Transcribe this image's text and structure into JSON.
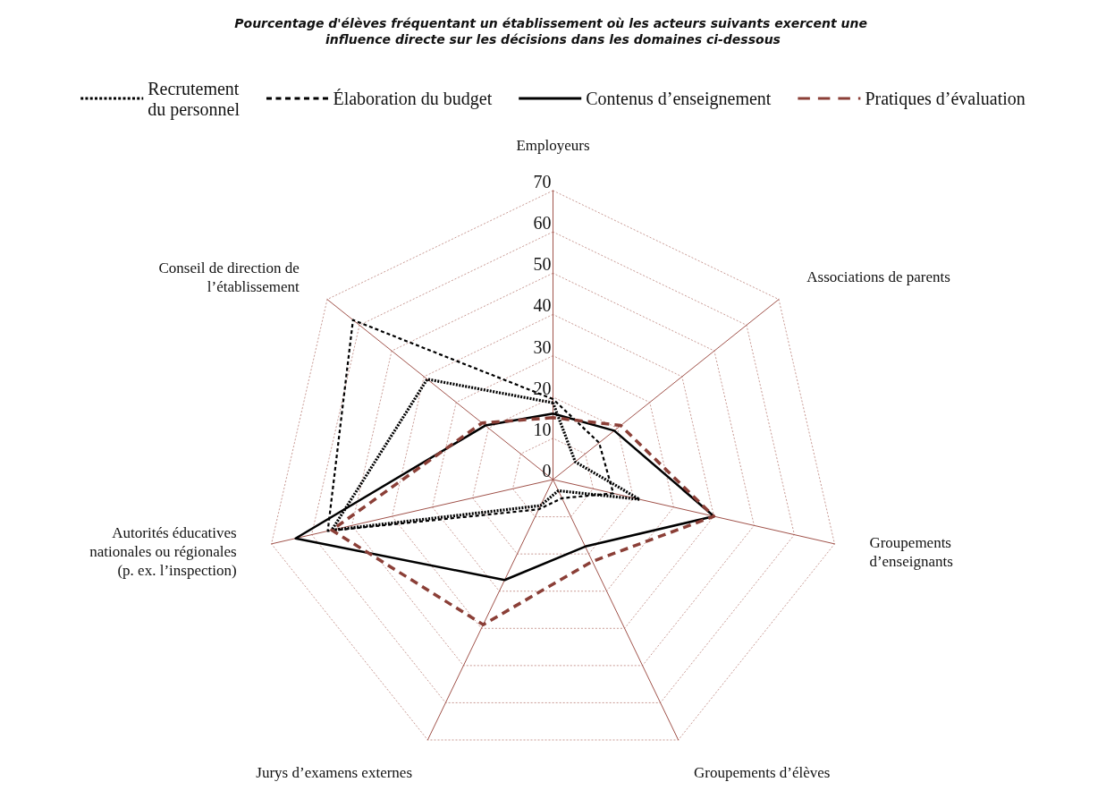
{
  "chart_data": {
    "type": "radar",
    "title": "Pourcentage d'élèves fréquentant un établissement où les acteurs suivants exercent une influence directe sur les décisions dans les domaines ci-dessous",
    "categories": [
      "Employeurs",
      "Associations de parents",
      "Groupements d’enseignants",
      "Groupements d’élèves",
      "Jurys d’examens externes",
      "Autorités éducatives nationales ou régionales (p. ex. l’inspection)",
      "Conseil de direction de l’établissement"
    ],
    "ylim": [
      0,
      70
    ],
    "yticks": [
      0,
      10,
      20,
      30,
      40,
      50,
      60,
      70
    ],
    "grid": true,
    "legend": "top",
    "marker": "none",
    "series": [
      {
        "name": "Recrutement du personnel",
        "color": "#000000",
        "line_style": "dotted",
        "values": [
          18.6,
          6.9,
          21.5,
          3,
          7,
          55,
          39
        ]
      },
      {
        "name": "Élaboration du budget",
        "color": "#000000",
        "line_style": "dashed",
        "values": [
          19.5,
          14.3,
          15,
          5,
          8,
          56,
          62
        ]
      },
      {
        "name": "Contenus d’enseignement",
        "color": "#000000",
        "line_style": "solid",
        "values": [
          16,
          19,
          40,
          18,
          27,
          64,
          21
        ]
      },
      {
        "name": "Pratiques d’évaluation",
        "color": "#8b3f37",
        "line_style": "dashed",
        "values": [
          15,
          21,
          40,
          22,
          39,
          55,
          22
        ]
      }
    ]
  }
}
